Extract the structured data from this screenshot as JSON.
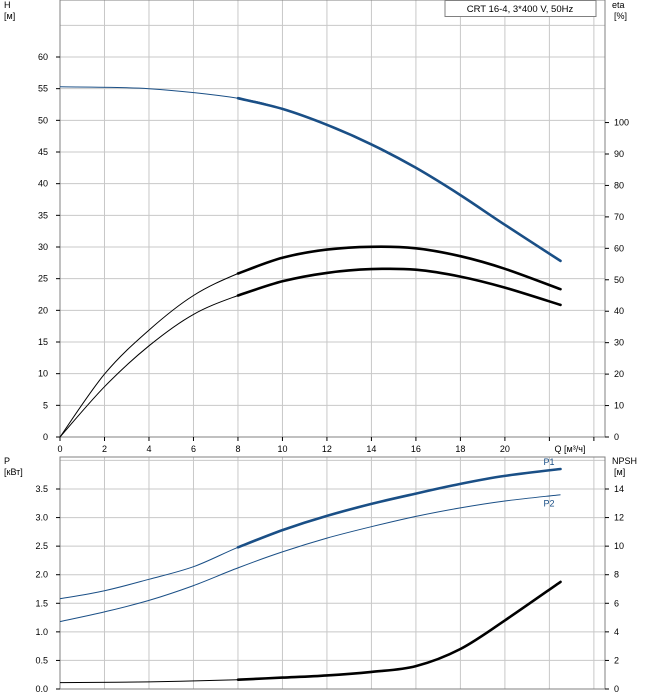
{
  "chart_data": [
    {
      "type": "line",
      "title": "CRT 16-4, 3*400 V, 50Hz",
      "ylabel": "H",
      "yunit": "[м]",
      "y2label": "eta",
      "y2unit": "[%]",
      "xlabel": "Q [м³/ч]",
      "xlim": [
        0,
        24.5
      ],
      "ylim": [
        0,
        69
      ],
      "grid": true,
      "x_ticks": [
        "0",
        "2",
        "4",
        "6",
        "8",
        "10",
        "12",
        "14",
        "16",
        "18",
        "20"
      ],
      "y_ticks": [
        "0",
        "5",
        "10",
        "15",
        "20",
        "25",
        "30",
        "35",
        "40",
        "45",
        "50",
        "55",
        "60"
      ],
      "y2_ticks": [
        "0",
        "10",
        "20",
        "30",
        "40",
        "50",
        "60",
        "70",
        "80",
        "90",
        "100"
      ],
      "series": [
        {
          "key": "H",
          "color": "#1a4f86",
          "axis": "left",
          "x": [
            0,
            4,
            8,
            10,
            12,
            14,
            16,
            18,
            20,
            22.5
          ],
          "values": [
            55.3,
            55.0,
            53.5,
            51.8,
            49.3,
            46.2,
            42.5,
            38.2,
            33.5,
            27.8
          ],
          "highlight_from": 8
        },
        {
          "key": "eta",
          "color": "#000000",
          "axis": "right",
          "x": [
            0,
            2,
            4,
            6,
            8,
            10,
            12,
            14,
            16,
            18,
            20,
            22.5
          ],
          "values": [
            0,
            20,
            34,
            45,
            52,
            57,
            59.6,
            60.5,
            60,
            57.5,
            53.5,
            47
          ],
          "highlight_from": 8
        },
        {
          "key": "eta2",
          "color": "#000000",
          "axis": "right",
          "x": [
            0,
            2,
            4,
            6,
            8,
            10,
            12,
            14,
            16,
            18,
            20,
            22.5
          ],
          "values": [
            0,
            16,
            29,
            39,
            45,
            49.5,
            52.2,
            53.4,
            53.2,
            51,
            47.5,
            42
          ],
          "highlight_from": 8
        }
      ]
    },
    {
      "type": "line",
      "ylabel": "P",
      "yunit": "[кВт]",
      "y2label": "NPSH",
      "y2unit": "[м]",
      "xlim": [
        0,
        24.5
      ],
      "ylim": [
        0,
        4.06
      ],
      "y2lim": [
        0,
        16.24
      ],
      "grid": true,
      "y_ticks": [
        "0.0",
        "0.5",
        "1.0",
        "1.5",
        "2.0",
        "2.5",
        "3.0",
        "3.5"
      ],
      "y2_ticks": [
        "0",
        "2",
        "4",
        "6",
        "8",
        "10",
        "12",
        "14"
      ],
      "series": [
        {
          "name": "P1",
          "color": "#1a4f86",
          "axis": "left",
          "x": [
            0,
            2,
            4,
            6,
            8,
            10,
            12,
            14,
            16,
            18,
            20,
            22.5
          ],
          "values": [
            1.58,
            1.72,
            1.92,
            2.14,
            2.48,
            2.78,
            3.03,
            3.24,
            3.42,
            3.59,
            3.73,
            3.85
          ],
          "highlight_from": 8
        },
        {
          "name": "P2",
          "color": "#1a4f86",
          "axis": "left",
          "x": [
            0,
            2,
            4,
            6,
            8,
            10,
            12,
            14,
            16,
            18,
            20,
            22.5
          ],
          "values": [
            1.18,
            1.35,
            1.55,
            1.81,
            2.12,
            2.4,
            2.64,
            2.84,
            3.02,
            3.17,
            3.29,
            3.4
          ],
          "highlight_from": -1
        },
        {
          "key": "NPSH",
          "color": "#000000",
          "axis": "right",
          "x": [
            0,
            4,
            8,
            10,
            12,
            14,
            16,
            18,
            20,
            22.5
          ],
          "values": [
            0.45,
            0.5,
            0.65,
            0.8,
            0.95,
            1.2,
            1.6,
            2.8,
            4.8,
            7.5
          ],
          "highlight_from": 8
        }
      ]
    }
  ]
}
